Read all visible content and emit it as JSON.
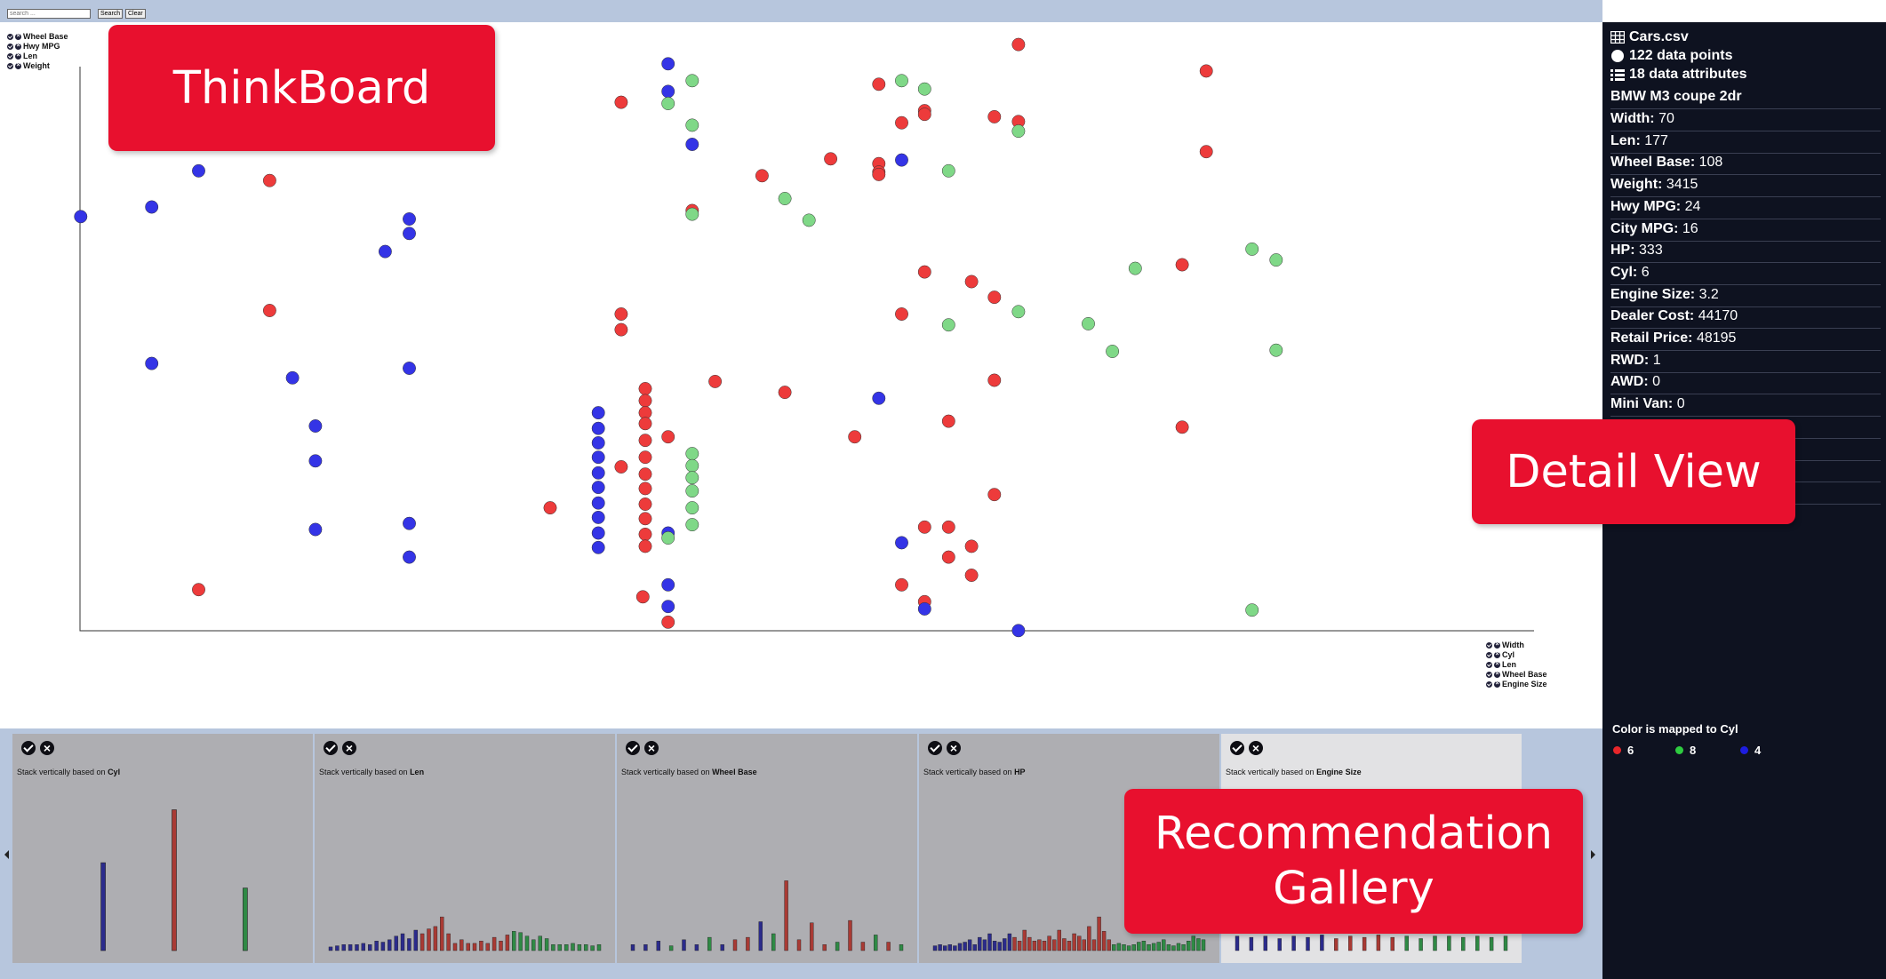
{
  "toolbar": {
    "search_placeholder": "search ...",
    "search_label": "Search",
    "clear_label": "Clear"
  },
  "callouts": {
    "thinkboard": "ThinkBoard",
    "detail_view": "Detail View",
    "gallery_line1": "Recommendation",
    "gallery_line2": "Gallery"
  },
  "y_attributes": [
    "Wheel Base",
    "Hwy MPG",
    "Len",
    "Weight"
  ],
  "x_attributes": [
    "Width",
    "Cyl",
    "Len",
    "Wheel Base",
    "Engine Size"
  ],
  "detail": {
    "file_name": "Cars.csv",
    "data_points": "122 data points",
    "data_attributes": "18 data attributes",
    "record_name": "BMW M3 coupe 2dr",
    "fields": [
      {
        "k": "Width:",
        "v": "70"
      },
      {
        "k": "Len:",
        "v": "177"
      },
      {
        "k": "Wheel Base:",
        "v": "108"
      },
      {
        "k": "Weight:",
        "v": "3415"
      },
      {
        "k": "Hwy MPG:",
        "v": "24"
      },
      {
        "k": "City MPG:",
        "v": "16"
      },
      {
        "k": "HP:",
        "v": "333"
      },
      {
        "k": "Cyl:",
        "v": "6"
      },
      {
        "k": "Engine Size:",
        "v": "3.2"
      },
      {
        "k": "Dealer Cost:",
        "v": "44170"
      },
      {
        "k": "Retail Price:",
        "v": "48195"
      },
      {
        "k": "RWD:",
        "v": "1"
      },
      {
        "k": "AWD:",
        "v": "0"
      },
      {
        "k": "Mini Van:",
        "v": "0"
      },
      {
        "k": "",
        "v": ""
      },
      {
        "k": "",
        "v": ""
      },
      {
        "k": "",
        "v": ""
      },
      {
        "k": "",
        "v": ""
      }
    ],
    "legend_title": "Color is mapped to Cyl",
    "legend": [
      {
        "label": "6",
        "color": "#e8262a"
      },
      {
        "label": "8",
        "color": "#2ecc40"
      },
      {
        "label": "4",
        "color": "#1d1de0"
      }
    ]
  },
  "colors": {
    "6": "#ed3b3b",
    "8": "#7fd887",
    "4": "#3434e6"
  },
  "scatter_points": [
    [
      67,
      180,
      4
    ],
    [
      126,
      172,
      4
    ],
    [
      165,
      142,
      4
    ],
    [
      224,
      150,
      6
    ],
    [
      224,
      258,
      6
    ],
    [
      126,
      302,
      4
    ],
    [
      165,
      490,
      6
    ],
    [
      243,
      314,
      4
    ],
    [
      262,
      354,
      4
    ],
    [
      262,
      383,
      4
    ],
    [
      262,
      440,
      4
    ],
    [
      340,
      182,
      4
    ],
    [
      340,
      194,
      4
    ],
    [
      320,
      209,
      4
    ],
    [
      340,
      306,
      4
    ],
    [
      340,
      435,
      4
    ],
    [
      340,
      463,
      4
    ],
    [
      457,
      422,
      6
    ],
    [
      516,
      85,
      6
    ],
    [
      516,
      261,
      6
    ],
    [
      516,
      274,
      6
    ],
    [
      516,
      388,
      6
    ],
    [
      497,
      343,
      4
    ],
    [
      497,
      356,
      4
    ],
    [
      497,
      368,
      4
    ],
    [
      497,
      380,
      4
    ],
    [
      497,
      393,
      4
    ],
    [
      497,
      405,
      4
    ],
    [
      497,
      418,
      4
    ],
    [
      497,
      430,
      4
    ],
    [
      497,
      443,
      4
    ],
    [
      497,
      455,
      4
    ],
    [
      536,
      323,
      6
    ],
    [
      536,
      333,
      6
    ],
    [
      536,
      343,
      6
    ],
    [
      536,
      352,
      6
    ],
    [
      536,
      366,
      6
    ],
    [
      536,
      380,
      6
    ],
    [
      536,
      394,
      6
    ],
    [
      536,
      406,
      6
    ],
    [
      536,
      419,
      6
    ],
    [
      536,
      431,
      6
    ],
    [
      536,
      444,
      6
    ],
    [
      536,
      454,
      6
    ],
    [
      534,
      496,
      6
    ],
    [
      555,
      53,
      4
    ],
    [
      555,
      76,
      4
    ],
    [
      555,
      86,
      8
    ],
    [
      555,
      363,
      6
    ],
    [
      555,
      443,
      4
    ],
    [
      555,
      486,
      4
    ],
    [
      555,
      504,
      4
    ],
    [
      555,
      517,
      6
    ],
    [
      555,
      447,
      8
    ],
    [
      575,
      67,
      8
    ],
    [
      575,
      104,
      8
    ],
    [
      575,
      120,
      4
    ],
    [
      575,
      175,
      6
    ],
    [
      575,
      178,
      8
    ],
    [
      575,
      377,
      8
    ],
    [
      575,
      387,
      8
    ],
    [
      575,
      397,
      8
    ],
    [
      575,
      408,
      8
    ],
    [
      575,
      422,
      8
    ],
    [
      575,
      436,
      8
    ],
    [
      594,
      317,
      6
    ],
    [
      633,
      146,
      6
    ],
    [
      652,
      326,
      6
    ],
    [
      652,
      165,
      8
    ],
    [
      672,
      183,
      8
    ],
    [
      690,
      132,
      6
    ],
    [
      710,
      363,
      6
    ],
    [
      730,
      70,
      6
    ],
    [
      730,
      136,
      6
    ],
    [
      730,
      143,
      6
    ],
    [
      730,
      145,
      6
    ],
    [
      730,
      331,
      4
    ],
    [
      749,
      67,
      8
    ],
    [
      749,
      102,
      6
    ],
    [
      749,
      133,
      4
    ],
    [
      749,
      261,
      6
    ],
    [
      749,
      451,
      4
    ],
    [
      749,
      486,
      6
    ],
    [
      768,
      74,
      8
    ],
    [
      768,
      92,
      6
    ],
    [
      768,
      95,
      6
    ],
    [
      768,
      226,
      6
    ],
    [
      768,
      438,
      6
    ],
    [
      768,
      500,
      6
    ],
    [
      768,
      506,
      4
    ],
    [
      788,
      142,
      8
    ],
    [
      788,
      270,
      8
    ],
    [
      788,
      350,
      6
    ],
    [
      788,
      438,
      6
    ],
    [
      788,
      463,
      6
    ],
    [
      807,
      234,
      6
    ],
    [
      807,
      454,
      6
    ],
    [
      807,
      478,
      6
    ],
    [
      826,
      97,
      6
    ],
    [
      826,
      247,
      6
    ],
    [
      826,
      316,
      6
    ],
    [
      826,
      411,
      6
    ],
    [
      846,
      37,
      6
    ],
    [
      846,
      101,
      6
    ],
    [
      846,
      109,
      8
    ],
    [
      846,
      259,
      8
    ],
    [
      846,
      524,
      4
    ],
    [
      904,
      269,
      8
    ],
    [
      924,
      292,
      8
    ],
    [
      943,
      223,
      8
    ],
    [
      982,
      220,
      6
    ],
    [
      982,
      355,
      6
    ],
    [
      1002,
      59,
      6
    ],
    [
      1002,
      126,
      6
    ],
    [
      1040,
      207,
      8
    ],
    [
      1040,
      507,
      8
    ],
    [
      1060,
      216,
      8
    ],
    [
      1060,
      291,
      8
    ]
  ],
  "gallery": [
    {
      "prefix": "Stack vertically based on ",
      "attr": "Cyl",
      "mode": "three",
      "bars": [
        [
          75,
          73,
          4
        ],
        [
          134,
          117,
          6
        ],
        [
          193,
          52,
          8
        ]
      ]
    },
    {
      "prefix": "Stack vertically based on ",
      "attr": "Len",
      "mode": "many",
      "colors": [
        4,
        4,
        4,
        4,
        4,
        4,
        4,
        4,
        4,
        4,
        4,
        4,
        4,
        4,
        6,
        6,
        6,
        6,
        6,
        6,
        6,
        6,
        6,
        6,
        6,
        6,
        6,
        6,
        8,
        8,
        8,
        8,
        8,
        8,
        8,
        8,
        8,
        8,
        8,
        8,
        8,
        8
      ],
      "heights": [
        3,
        4,
        5,
        5,
        5,
        6,
        5,
        8,
        7,
        9,
        12,
        14,
        10,
        17,
        14,
        18,
        20,
        28,
        14,
        6,
        9,
        6,
        6,
        8,
        6,
        11,
        8,
        13,
        16,
        15,
        12,
        9,
        12,
        10,
        5,
        5,
        5,
        6,
        5,
        5,
        4,
        5
      ]
    },
    {
      "prefix": "Stack vertically based on ",
      "attr": "Wheel Base",
      "mode": "many",
      "colors": [
        4,
        4,
        4,
        8,
        4,
        4,
        8,
        4,
        6,
        6,
        4,
        8,
        6,
        6,
        6,
        6,
        8,
        6,
        6,
        8,
        6,
        8
      ],
      "heights": [
        5,
        5,
        8,
        4,
        9,
        5,
        11,
        5,
        9,
        11,
        24,
        14,
        58,
        9,
        23,
        5,
        7,
        25,
        7,
        13,
        7,
        5
      ]
    },
    {
      "prefix": "Stack vertically based on ",
      "attr": "HP",
      "mode": "many",
      "colors": [
        4,
        4,
        4,
        4,
        4,
        4,
        4,
        4,
        4,
        4,
        4,
        4,
        4,
        4,
        4,
        4,
        6,
        6,
        6,
        6,
        6,
        6,
        6,
        6,
        6,
        6,
        6,
        6,
        6,
        6,
        6,
        6,
        6,
        6,
        6,
        6,
        8,
        8,
        8,
        8,
        8,
        8,
        8,
        8,
        8,
        8,
        8,
        8,
        8,
        8,
        8,
        8,
        8,
        8,
        8
      ],
      "heights": [
        4,
        5,
        4,
        5,
        4,
        6,
        7,
        9,
        5,
        11,
        9,
        14,
        8,
        7,
        10,
        14,
        11,
        8,
        17,
        11,
        8,
        9,
        8,
        12,
        9,
        17,
        10,
        8,
        14,
        12,
        9,
        20,
        9,
        28,
        16,
        9,
        5,
        6,
        5,
        4,
        5,
        7,
        8,
        5,
        6,
        7,
        9,
        5,
        4,
        6,
        5,
        8,
        12,
        10,
        9
      ]
    },
    {
      "prefix": "Stack vertically based on ",
      "attr": "Engine Size",
      "mode": "many",
      "light": true,
      "colors": [
        4,
        4,
        4,
        4,
        4,
        4,
        4,
        6,
        6,
        6,
        6,
        6,
        8,
        8,
        8,
        8,
        8,
        8,
        8,
        8
      ],
      "heights": [
        12,
        11,
        12,
        10,
        12,
        11,
        13,
        10,
        12,
        11,
        13,
        11,
        12,
        10,
        12,
        12,
        11,
        12,
        11,
        12
      ]
    }
  ]
}
